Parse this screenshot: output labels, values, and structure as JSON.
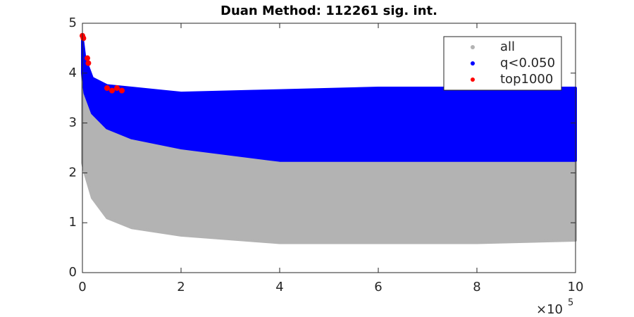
{
  "chart_data": {
    "type": "scatter",
    "title": "Duan Method: 112261 sig. int.",
    "xlim": [
      0,
      10
    ],
    "xticks": [
      0,
      2,
      4,
      6,
      8,
      10
    ],
    "ylim": [
      0,
      5
    ],
    "yticks": [
      0,
      1,
      2,
      3,
      4,
      5
    ],
    "x_multiplier": "×10",
    "x_multiplier_exponent": "5",
    "legend": "northeast",
    "series": [
      {
        "name": "all",
        "color": "#b3b3b3",
        "x": [
          0,
          0.05,
          0.2,
          0.5,
          1,
          2,
          4,
          6,
          8,
          10
        ],
        "lower": [
          2.2,
          2.0,
          1.5,
          1.1,
          0.9,
          0.75,
          0.6,
          0.6,
          0.6,
          0.65
        ],
        "upper": [
          4.2,
          3.8,
          3.3,
          2.9,
          2.7,
          2.5,
          2.3,
          2.25,
          2.25,
          2.3
        ]
      },
      {
        "name": "q<0.050",
        "color": "#0000ff",
        "x": [
          0,
          0.05,
          0.2,
          0.5,
          1,
          2,
          4,
          6,
          8,
          10
        ],
        "lower": [
          4.0,
          3.6,
          3.2,
          2.9,
          2.7,
          2.5,
          2.25,
          2.25,
          2.25,
          2.25
        ],
        "upper": [
          4.7,
          4.3,
          3.9,
          3.75,
          3.7,
          3.6,
          3.65,
          3.7,
          3.7,
          3.7
        ]
      },
      {
        "name": "top1000",
        "color": "#ff0000",
        "x": [
          0,
          0.02,
          0.1,
          0.12,
          0.5,
          0.6,
          0.7,
          0.8
        ],
        "values": [
          4.75,
          4.7,
          4.3,
          4.2,
          3.7,
          3.65,
          3.7,
          3.65
        ]
      }
    ]
  }
}
